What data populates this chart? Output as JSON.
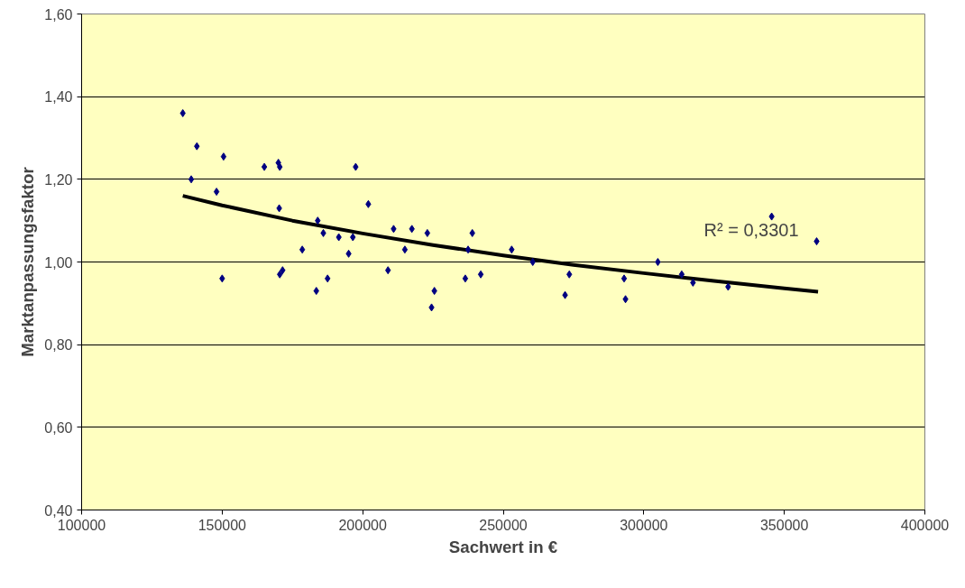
{
  "chart_data": {
    "type": "scatter",
    "xlabel": "Sachwert in €",
    "ylabel": "Marktanpassungsfaktor",
    "xlim": [
      100000,
      400000
    ],
    "xticks": [
      100000,
      150000,
      200000,
      250000,
      300000,
      350000,
      400000
    ],
    "ylim": [
      0.4,
      1.6
    ],
    "yticks": [
      {
        "value": 0.4,
        "label": "0,40"
      },
      {
        "value": 0.6,
        "label": "0,60"
      },
      {
        "value": 0.8,
        "label": "0,80"
      },
      {
        "value": 1.0,
        "label": "1,00"
      },
      {
        "value": 1.2,
        "label": "1,20"
      },
      {
        "value": 1.4,
        "label": "1,40"
      },
      {
        "value": 1.6,
        "label": "1,60"
      }
    ],
    "grid": "y",
    "series": [
      {
        "marker": "diamond",
        "color": "#000080",
        "x": [
          136000,
          139000,
          141000,
          148000,
          150000,
          150500,
          165000,
          170000,
          170500,
          170300,
          170500,
          171500,
          178500,
          183500,
          184000,
          186000,
          187500,
          191500,
          195000,
          196500,
          197500,
          202000,
          209000,
          211000,
          215000,
          217500,
          223000,
          224500,
          225500,
          236500,
          237500,
          239000,
          242000,
          253000,
          260500,
          272000,
          273500,
          293000,
          293500,
          305000,
          313500,
          317500,
          330000,
          345500,
          361500
        ],
        "values": [
          1.36,
          1.2,
          1.28,
          1.17,
          0.96,
          1.255,
          1.23,
          1.24,
          1.23,
          1.13,
          0.97,
          0.98,
          1.03,
          0.93,
          1.1,
          1.07,
          0.96,
          1.06,
          1.02,
          1.06,
          1.23,
          1.14,
          0.98,
          1.08,
          1.03,
          1.08,
          1.07,
          0.89,
          0.93,
          0.96,
          1.03,
          1.07,
          0.97,
          1.03,
          1.0,
          0.92,
          0.97,
          0.96,
          0.91,
          1.0,
          0.97,
          0.95,
          0.94,
          1.11,
          1.05
        ]
      },
      {
        "type": "line",
        "color": "#000000",
        "x": [
          136000,
          150000,
          175000,
          200000,
          225000,
          250000,
          275000,
          300000,
          325000,
          350000,
          362000
        ],
        "values": [
          1.16,
          1.137,
          1.1,
          1.069,
          1.041,
          1.016,
          0.993,
          0.973,
          0.954,
          0.936,
          0.928
        ]
      }
    ],
    "annotations": [
      "R² = 0,3301"
    ]
  }
}
